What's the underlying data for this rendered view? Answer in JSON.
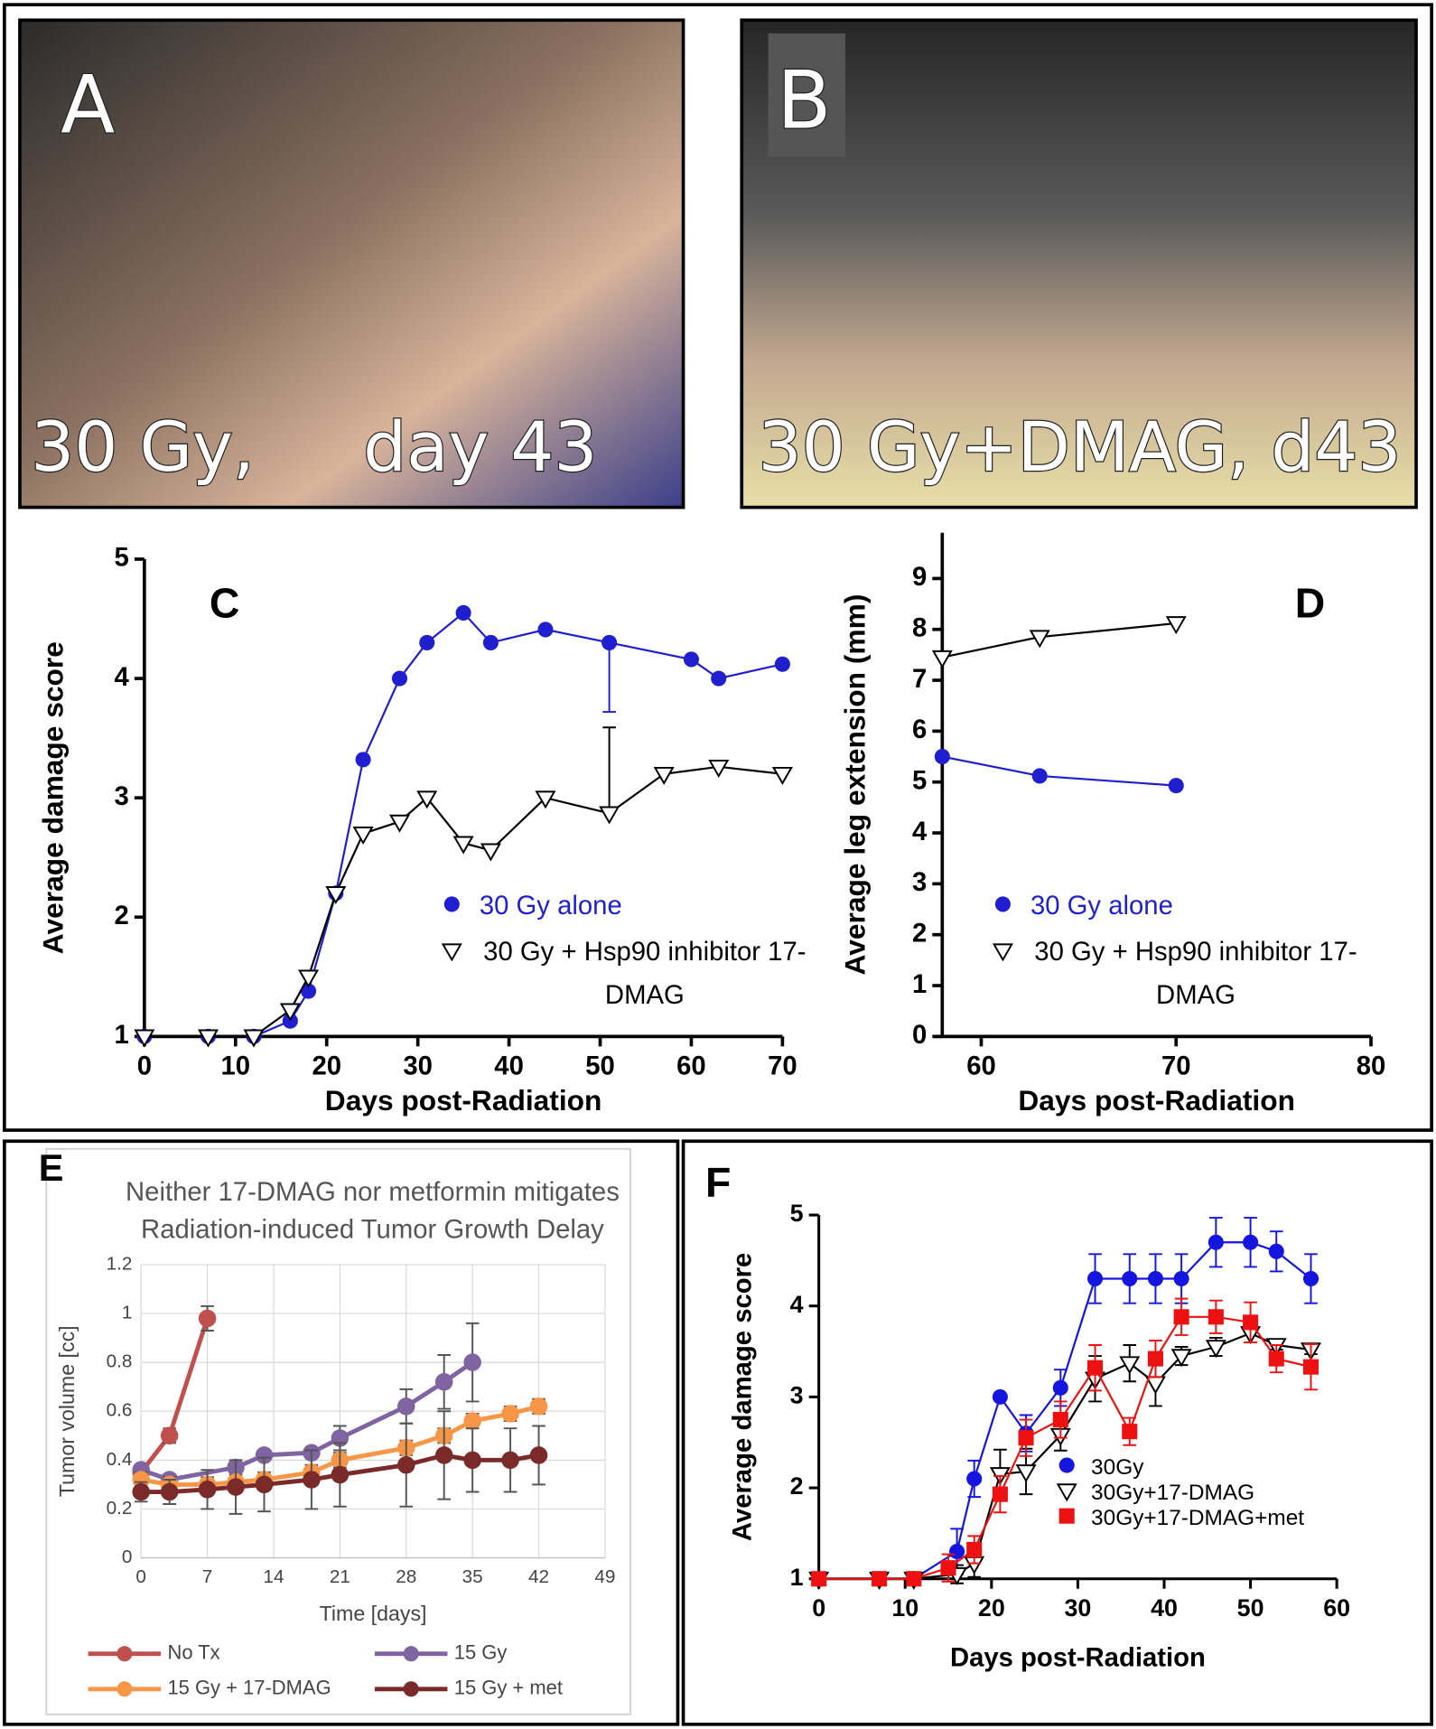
{
  "photos": [
    {
      "label": "A",
      "caption": "30 Gy,     day 43"
    },
    {
      "label": "B",
      "caption": "30 Gy+DMAG, d43"
    }
  ],
  "chart_data": [
    {
      "type": "line",
      "label": "C",
      "xlabel": "Days post-Radiation",
      "ylabel": "Average damage score",
      "xlim": [
        0,
        70
      ],
      "xticks": [
        0,
        10,
        20,
        30,
        40,
        50,
        60,
        70
      ],
      "ylim": [
        1,
        5
      ],
      "yticks": [
        1,
        2,
        3,
        4,
        5
      ],
      "grid": false,
      "series": [
        {
          "name": "30 Gy alone",
          "color": "#1f1fcf",
          "marker": "circle",
          "error_side": "minus",
          "x": [
            0,
            7,
            12,
            16,
            18,
            21,
            24,
            28,
            31,
            35,
            38,
            44,
            51,
            60,
            63,
            70
          ],
          "values": [
            1,
            1,
            1,
            1.13,
            1.38,
            2.2,
            3.32,
            4.0,
            4.3,
            4.55,
            4.3,
            4.41,
            4.3,
            4.16,
            4.0,
            4.12
          ],
          "errors": [
            null,
            null,
            null,
            null,
            null,
            null,
            null,
            null,
            null,
            null,
            null,
            null,
            0.58,
            null,
            null,
            null
          ]
        },
        {
          "name": "30 Gy + Hsp90 inhibitor 17-DMAG",
          "color": "#000000",
          "marker": "triangle-down-open",
          "error_side": "plus",
          "x": [
            0,
            7,
            12,
            16,
            18,
            21,
            24,
            28,
            31,
            35,
            38,
            44,
            51,
            57,
            63,
            70
          ],
          "values": [
            1,
            1,
            1,
            1.22,
            1.5,
            2.2,
            2.7,
            2.8,
            3.0,
            2.62,
            2.56,
            3.0,
            2.87,
            3.2,
            3.26,
            3.2
          ],
          "errors": [
            null,
            null,
            null,
            null,
            null,
            null,
            null,
            null,
            null,
            null,
            null,
            null,
            0.72,
            null,
            null,
            null
          ]
        }
      ]
    },
    {
      "type": "line",
      "label": "D",
      "xlabel": "Days post-Radiation",
      "ylabel": "Average leg extension (mm)",
      "xlim": [
        58,
        80
      ],
      "xticks": [
        60,
        70,
        80
      ],
      "ylim": [
        0,
        9.9
      ],
      "yticks": [
        0,
        1,
        2,
        3,
        4,
        5,
        6,
        7,
        8,
        9
      ],
      "grid": false,
      "series": [
        {
          "name": "30 Gy alone",
          "color": "#1f1fcf",
          "marker": "circle",
          "x": [
            58,
            63,
            70
          ],
          "values": [
            5.5,
            5.12,
            4.93
          ]
        },
        {
          "name": "30 Gy + Hsp90 inhibitor 17-DMAG",
          "color": "#000000",
          "marker": "triangle-down-open",
          "x": [
            58,
            63,
            70
          ],
          "values": [
            7.45,
            7.85,
            8.12
          ]
        }
      ]
    },
    {
      "type": "line",
      "label": "E",
      "title": "Neither 17-DMAG nor metformin mitigates Radiation-induced Tumor Growth Delay",
      "xlabel": "Time [days]",
      "ylabel": "Tumor volume [cc]",
      "xlim": [
        0,
        49
      ],
      "xticks": [
        0,
        7,
        14,
        21,
        28,
        35,
        42,
        49
      ],
      "ylim": [
        0,
        1.2
      ],
      "yticks": [
        0,
        0.2,
        0.4,
        0.6,
        0.8,
        1,
        1.2
      ],
      "grid": true,
      "series": [
        {
          "name": "No Tx",
          "color": "#c0504d",
          "marker": "circle",
          "x": [
            0,
            3,
            7
          ],
          "values": [
            0.35,
            0.5,
            0.98
          ],
          "errors": [
            0.02,
            0.03,
            0.05
          ]
        },
        {
          "name": "15 Gy",
          "color": "#8064a2",
          "marker": "circle",
          "x": [
            0,
            3,
            10,
            13,
            18,
            21,
            28,
            32,
            35
          ],
          "values": [
            0.36,
            0.32,
            0.37,
            0.42,
            0.43,
            0.49,
            0.62,
            0.72,
            0.8
          ],
          "errors": [
            0.02,
            0.02,
            0.02,
            0.02,
            0.02,
            0.05,
            0.07,
            0.11,
            0.16
          ]
        },
        {
          "name": "15 Gy + 17-DMAG",
          "color": "#f79646",
          "marker": "circle",
          "x": [
            0,
            3,
            7,
            10,
            13,
            18,
            21,
            28,
            32,
            35,
            39,
            42
          ],
          "values": [
            0.32,
            0.3,
            0.3,
            0.31,
            0.32,
            0.35,
            0.4,
            0.45,
            0.5,
            0.56,
            0.59,
            0.62
          ],
          "errors": [
            0.03,
            0.03,
            0.03,
            0.03,
            0.03,
            0.03,
            0.03,
            0.03,
            0.03,
            0.03,
            0.03,
            0.03
          ]
        },
        {
          "name": "15 Gy + met",
          "color": "#7b2a2a",
          "marker": "circle",
          "x": [
            0,
            3,
            7,
            10,
            13,
            18,
            21,
            28,
            32,
            35,
            39,
            42
          ],
          "values": [
            0.27,
            0.27,
            0.28,
            0.29,
            0.3,
            0.32,
            0.34,
            0.38,
            0.42,
            0.4,
            0.4,
            0.42
          ],
          "errors": [
            0.04,
            0.05,
            0.08,
            0.11,
            0.11,
            0.12,
            0.13,
            0.17,
            0.18,
            0.13,
            0.13,
            0.12
          ]
        }
      ]
    },
    {
      "type": "line",
      "label": "F",
      "xlabel": "Days post-Radiation",
      "ylabel": "Average damage score",
      "xlim": [
        0,
        60
      ],
      "xticks": [
        0,
        10,
        20,
        30,
        40,
        50,
        60
      ],
      "ylim": [
        1,
        5
      ],
      "yticks": [
        1,
        2,
        3,
        4,
        5
      ],
      "grid": false,
      "series": [
        {
          "name": "30Gy",
          "color": "#1515e0",
          "marker": "circle",
          "x": [
            0,
            7,
            11,
            16,
            18,
            21,
            24,
            28,
            32,
            36,
            39,
            42,
            46,
            50,
            53,
            57
          ],
          "values": [
            1,
            1,
            1,
            1.3,
            2.1,
            3.0,
            2.6,
            3.1,
            4.3,
            4.3,
            4.3,
            4.3,
            4.7,
            4.7,
            4.6,
            4.3
          ],
          "errors": [
            null,
            null,
            null,
            0.25,
            0.2,
            null,
            0.2,
            0.2,
            0.27,
            0.27,
            0.27,
            0.27,
            0.27,
            0.27,
            0.22,
            0.27
          ]
        },
        {
          "name": "30Gy+17-DMAG",
          "color": "#000000",
          "marker": "triangle-down-open",
          "x": [
            0,
            7,
            11,
            16,
            18,
            21,
            24,
            28,
            32,
            36,
            39,
            42,
            46,
            50,
            53,
            57
          ],
          "values": [
            1,
            1,
            1,
            1.05,
            1.17,
            2.15,
            2.18,
            2.58,
            3.2,
            3.37,
            3.15,
            3.45,
            3.55,
            3.7,
            3.57,
            3.52
          ],
          "errors": [
            null,
            null,
            null,
            0.1,
            0.15,
            0.27,
            0.25,
            0.17,
            0.25,
            0.2,
            0.25,
            0.1,
            0.1,
            0.1,
            0.05,
            0.05
          ]
        },
        {
          "name": "30Gy+17-DMAG+met",
          "color": "#ee1111",
          "marker": "square",
          "x": [
            0,
            7,
            11,
            15,
            18,
            21,
            24,
            28,
            32,
            36,
            39,
            42,
            46,
            50,
            53,
            57
          ],
          "values": [
            1,
            1,
            1,
            1.12,
            1.32,
            1.93,
            2.55,
            2.75,
            3.32,
            2.62,
            3.42,
            3.88,
            3.88,
            3.82,
            3.42,
            3.33
          ],
          "errors": [
            null,
            null,
            null,
            0.15,
            0.15,
            0.2,
            0.2,
            0.2,
            0.25,
            0.15,
            0.2,
            0.2,
            0.18,
            0.22,
            0.15,
            0.25
          ]
        }
      ]
    }
  ]
}
